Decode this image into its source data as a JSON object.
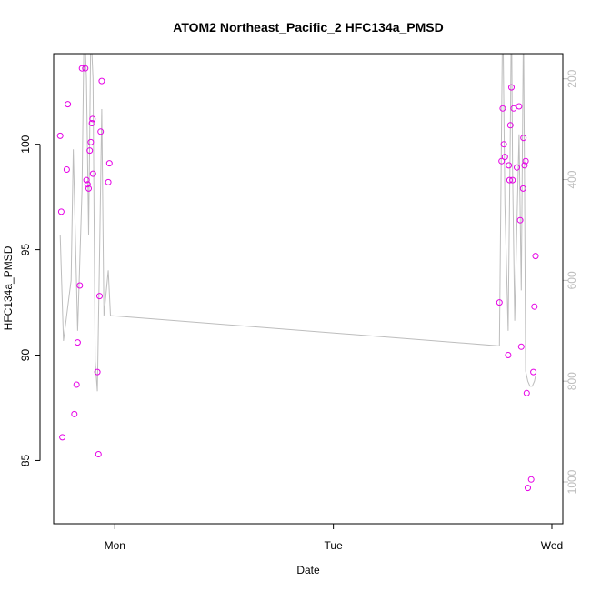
{
  "chart_data": {
    "type": "scatter",
    "title": "ATOM2 Northeast_Pacific_2 HFC134a_PMSD",
    "xlabel": "Date",
    "ylabel": "HFC134a_PMSD",
    "x_ticks": [
      "Mon",
      "Tue",
      "Wed"
    ],
    "x_tick_pos": [
      0,
      1,
      2
    ],
    "xlim": [
      -0.28,
      2.05
    ],
    "ylim": [
      82,
      104.3
    ],
    "y_ticks": [
      85,
      90,
      95,
      100
    ],
    "y2lim": [
      1083,
      150
    ],
    "y2_ticks": [
      200,
      400,
      600,
      800,
      1000
    ],
    "y2_label": "",
    "grid": false,
    "legend": "none",
    "colors": {
      "points": "#e600e6",
      "line": "#bdbdbd",
      "frame": "#000000",
      "right_axis": "#bdbdbd"
    },
    "series": [
      {
        "values": [
          [
            -0.25,
            100.4
          ],
          [
            -0.245,
            96.8
          ],
          [
            -0.24,
            86.1
          ],
          [
            -0.22,
            98.8
          ],
          [
            -0.215,
            101.9
          ],
          [
            -0.185,
            87.2
          ],
          [
            -0.175,
            88.6
          ],
          [
            -0.17,
            90.6
          ],
          [
            -0.16,
            93.3
          ],
          [
            -0.15,
            103.6
          ],
          [
            -0.135,
            103.6
          ],
          [
            -0.13,
            98.3
          ],
          [
            -0.125,
            98.1
          ],
          [
            -0.12,
            97.9
          ],
          [
            -0.115,
            99.7
          ],
          [
            -0.11,
            100.1
          ],
          [
            -0.105,
            101.0
          ],
          [
            -0.102,
            101.2
          ],
          [
            -0.1,
            98.6
          ],
          [
            -0.08,
            89.2
          ],
          [
            -0.075,
            85.3
          ],
          [
            -0.07,
            92.8
          ],
          [
            -0.065,
            100.6
          ],
          [
            -0.06,
            103.0
          ],
          [
            -0.03,
            98.2
          ],
          [
            -0.025,
            99.1
          ],
          [
            1.76,
            92.5
          ],
          [
            1.77,
            99.2
          ],
          [
            1.775,
            101.7
          ],
          [
            1.78,
            100.0
          ],
          [
            1.785,
            99.4
          ],
          [
            1.8,
            90.0
          ],
          [
            1.803,
            99.0
          ],
          [
            1.806,
            98.3
          ],
          [
            1.81,
            100.9
          ],
          [
            1.815,
            102.7
          ],
          [
            1.82,
            98.3
          ],
          [
            1.825,
            101.7
          ],
          [
            1.84,
            98.9
          ],
          [
            1.85,
            101.8
          ],
          [
            1.855,
            96.4
          ],
          [
            1.86,
            90.4
          ],
          [
            1.868,
            97.9
          ],
          [
            1.87,
            100.3
          ],
          [
            1.875,
            99.0
          ],
          [
            1.88,
            99.2
          ],
          [
            1.885,
            88.2
          ],
          [
            1.89,
            83.7
          ],
          [
            1.905,
            84.1
          ],
          [
            1.915,
            89.2
          ],
          [
            1.92,
            92.3
          ],
          [
            1.925,
            94.7
          ]
        ]
      },
      {
        "axis": "right",
        "values": [
          [
            -0.25,
            510
          ],
          [
            -0.235,
            720
          ],
          [
            -0.2,
            600
          ],
          [
            -0.19,
            340
          ],
          [
            -0.17,
            700
          ],
          [
            -0.15,
            420
          ],
          [
            -0.14,
            80
          ],
          [
            -0.13,
            200
          ],
          [
            -0.12,
            510
          ],
          [
            -0.11,
            100
          ],
          [
            -0.1,
            200
          ],
          [
            -0.09,
            760
          ],
          [
            -0.08,
            820
          ],
          [
            -0.07,
            550
          ],
          [
            -0.06,
            260
          ],
          [
            -0.05,
            670
          ],
          [
            -0.03,
            580
          ],
          [
            -0.02,
            670
          ],
          [
            1.76,
            730
          ],
          [
            1.775,
            50
          ],
          [
            1.785,
            450
          ],
          [
            1.8,
            700
          ],
          [
            1.81,
            300
          ],
          [
            1.815,
            50
          ],
          [
            1.82,
            380
          ],
          [
            1.83,
            680
          ],
          [
            1.84,
            490
          ],
          [
            1.85,
            310
          ],
          [
            1.86,
            620
          ],
          [
            1.87,
            80
          ],
          [
            1.875,
            400
          ],
          [
            1.88,
            780
          ],
          [
            1.89,
            800
          ],
          [
            1.9,
            810
          ],
          [
            1.91,
            810
          ],
          [
            1.92,
            800
          ],
          [
            1.925,
            790
          ]
        ]
      }
    ]
  }
}
